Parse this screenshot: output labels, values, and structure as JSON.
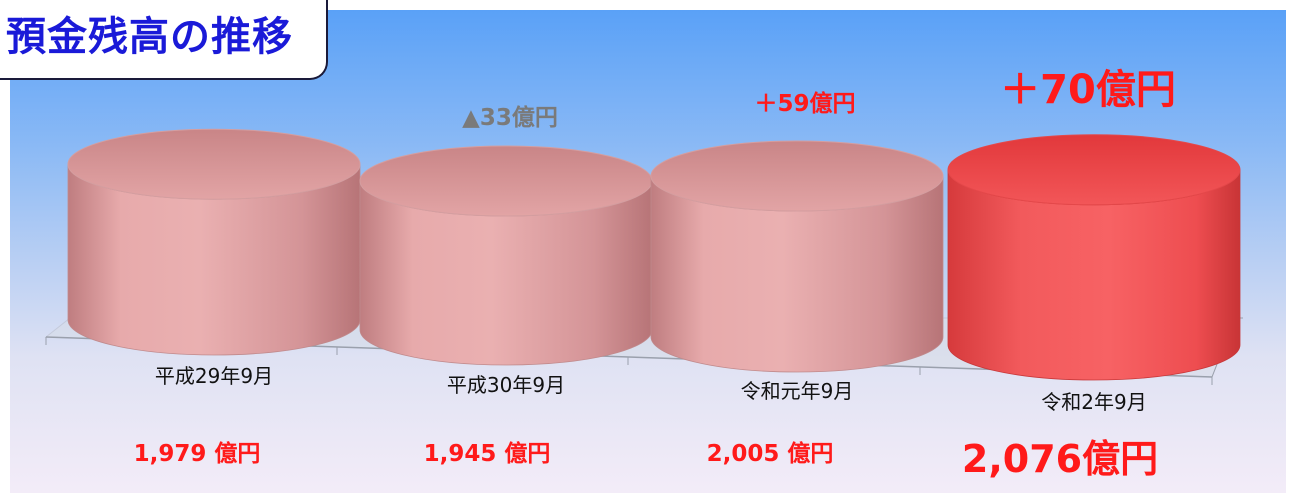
{
  "title": "預金残高の推移",
  "chart_data": {
    "type": "bar",
    "categories": [
      "平成29年9月",
      "平成30年9月",
      "令和元年9月",
      "令和2年9月"
    ],
    "values": [
      1979,
      1945,
      2005,
      2076
    ],
    "value_labels": [
      "1,979 億円",
      "1,945 億円",
      "2,005 億円",
      "2,076億円"
    ],
    "change_labels": [
      "",
      "▲33億円",
      "＋59億円",
      "＋70億円"
    ],
    "bar_colors": [
      "#d99a9c",
      "#d99a9c",
      "#d99a9c",
      "#f04a4a"
    ],
    "change_colors": [
      "",
      "#7a7a7a",
      "#ff1a1a",
      "#ff1a1a"
    ],
    "value_label_color": "#ff1a1a",
    "highlight_index": 3
  }
}
